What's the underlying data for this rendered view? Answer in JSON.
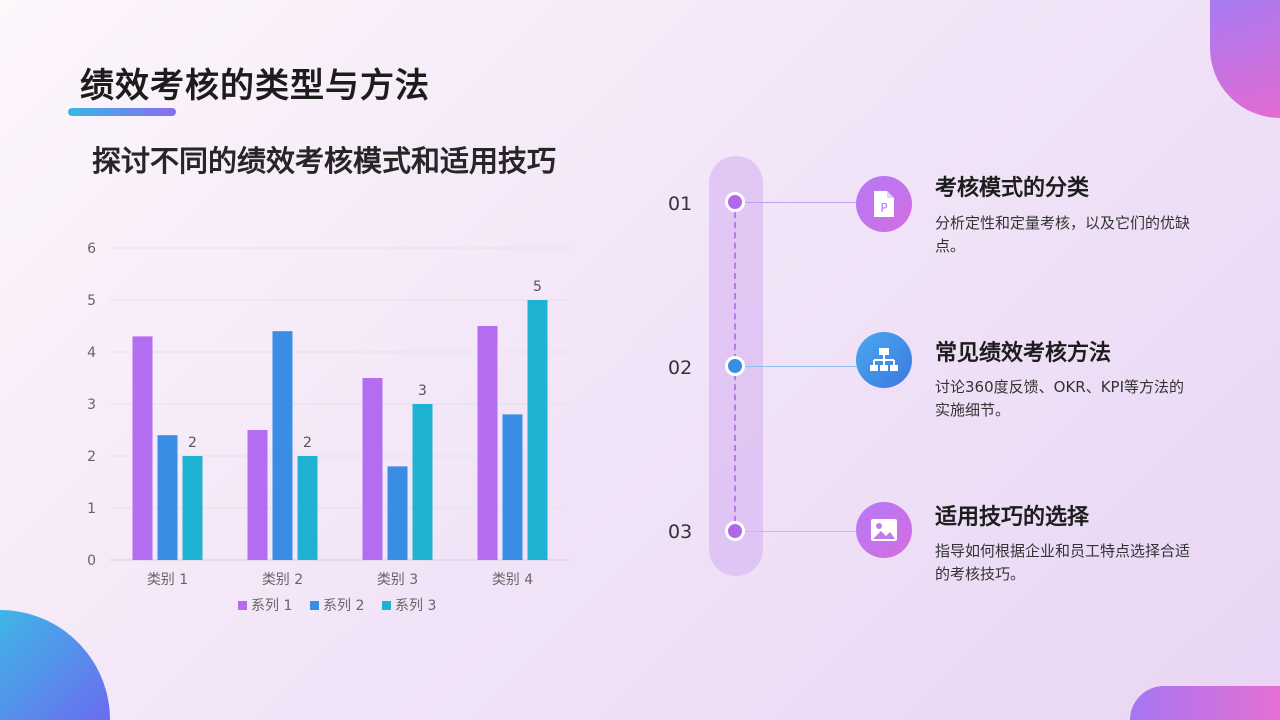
{
  "slide": {
    "title": "绩效考核的类型与方法",
    "subtitle": "探讨不同的绩效考核模式和适用技巧"
  },
  "chart_data": {
    "type": "bar",
    "categories": [
      "类别 1",
      "类别 2",
      "类别 3",
      "类别 4"
    ],
    "series": [
      {
        "name": "系列 1",
        "values": [
          4.3,
          2.5,
          3.5,
          4.5
        ],
        "color": "#b46cf0"
      },
      {
        "name": "系列 2",
        "values": [
          2.4,
          4.4,
          1.8,
          2.8
        ],
        "color": "#3a8de4"
      },
      {
        "name": "系列 3",
        "values": [
          2,
          2,
          3,
          5
        ],
        "color": "#1eb3d3"
      }
    ],
    "data_labels_series": "系列 3",
    "data_labels": [
      "2",
      "2",
      "3",
      "5"
    ],
    "y_ticks": [
      "0",
      "1",
      "2",
      "3",
      "4",
      "5",
      "6"
    ],
    "ylim": [
      0,
      6
    ],
    "grid": true,
    "legend": "bottom"
  },
  "timeline": [
    {
      "num": "01",
      "title": "考核模式的分类",
      "desc": "分析定性和定量考核，以及它们的优缺点。",
      "icon": "document-icon",
      "dot_color": "#b067ec",
      "icon_gradient": [
        "#b57af5",
        "#d36de2"
      ]
    },
    {
      "num": "02",
      "title": "常见绩效考核方法",
      "desc": "讨论360度反馈、OKR、KPI等方法的实施细节。",
      "icon": "org-chart-icon",
      "dot_color": "#3a8de4",
      "icon_gradient": [
        "#4aa8ef",
        "#3b79e0"
      ]
    },
    {
      "num": "03",
      "title": "适用技巧的选择",
      "desc": "指导如何根据企业和员工特点选择合适的考核技巧。",
      "icon": "image-icon",
      "dot_color": "#b067ec",
      "icon_gradient": [
        "#b57af5",
        "#d36de2"
      ]
    }
  ]
}
